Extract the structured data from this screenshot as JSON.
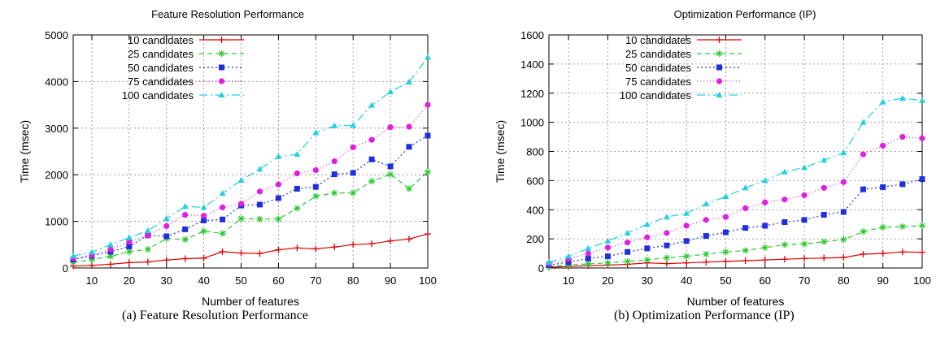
{
  "chart_data": [
    {
      "type": "line",
      "title": "Feature Resolution Performance",
      "xlabel": "Number of features",
      "ylabel": "Time (msec)",
      "xlim": [
        5,
        100
      ],
      "ylim": [
        0,
        5000
      ],
      "xticks": [
        10,
        20,
        30,
        40,
        50,
        60,
        70,
        80,
        90,
        100
      ],
      "yticks": [
        0,
        1000,
        2000,
        3000,
        4000,
        5000
      ],
      "grid": true,
      "legend_position": "top-left",
      "x": [
        5,
        10,
        15,
        20,
        25,
        30,
        35,
        40,
        45,
        50,
        55,
        60,
        65,
        70,
        75,
        80,
        85,
        90,
        95,
        100
      ],
      "series": [
        {
          "name": "10 candidates",
          "color": "#e00000",
          "marker": "plus",
          "dash": "solid",
          "values": [
            40,
            55,
            80,
            115,
            130,
            170,
            200,
            210,
            350,
            320,
            310,
            390,
            430,
            410,
            450,
            500,
            520,
            580,
            620,
            730
          ]
        },
        {
          "name": "25 candidates",
          "color": "#2ec832",
          "marker": "star",
          "dash": "6,4",
          "values": [
            120,
            180,
            250,
            350,
            400,
            630,
            610,
            790,
            740,
            1060,
            1050,
            1050,
            1280,
            1540,
            1610,
            1610,
            1860,
            2010,
            1700,
            2060
          ]
        },
        {
          "name": "50 candidates",
          "color": "#1f2fe0",
          "marker": "square",
          "dash": "2,3",
          "values": [
            180,
            260,
            350,
            460,
            700,
            680,
            830,
            1020,
            1040,
            1340,
            1360,
            1500,
            1700,
            1740,
            2010,
            2040,
            2330,
            2180,
            2600,
            2840
          ]
        },
        {
          "name": "75 candidates",
          "color": "#e020e0",
          "marker": "circle",
          "dash": "1,3",
          "values": [
            210,
            280,
            400,
            560,
            700,
            900,
            1140,
            1120,
            1300,
            1380,
            1640,
            1790,
            2030,
            2100,
            2290,
            2590,
            2750,
            3020,
            3030,
            3500
          ]
        },
        {
          "name": "100 candidates",
          "color": "#20d0e0",
          "marker": "triangle",
          "dash": "10,4,2,4",
          "values": [
            260,
            340,
            500,
            650,
            800,
            1060,
            1320,
            1300,
            1600,
            1880,
            2120,
            2390,
            2440,
            2900,
            3050,
            3060,
            3490,
            3780,
            3990,
            4520
          ]
        }
      ]
    },
    {
      "type": "line",
      "title": "Optimization Performance (IP)",
      "xlabel": "Number of features",
      "ylabel": "Time (msec)",
      "xlim": [
        5,
        100
      ],
      "ylim": [
        0,
        1600
      ],
      "xticks": [
        10,
        20,
        30,
        40,
        50,
        60,
        70,
        80,
        90,
        100
      ],
      "yticks": [
        0,
        200,
        400,
        600,
        800,
        1000,
        1200,
        1400,
        1600
      ],
      "grid": true,
      "legend_position": "top-left",
      "x": [
        5,
        10,
        15,
        20,
        25,
        30,
        35,
        40,
        45,
        50,
        55,
        60,
        65,
        70,
        75,
        80,
        85,
        90,
        95,
        100
      ],
      "series": [
        {
          "name": "10 candidates",
          "color": "#e00000",
          "marker": "plus",
          "dash": "solid",
          "values": [
            5,
            10,
            15,
            20,
            25,
            35,
            30,
            35,
            40,
            45,
            50,
            55,
            60,
            65,
            68,
            72,
            95,
            100,
            110,
            108
          ]
        },
        {
          "name": "25 candidates",
          "color": "#2ec832",
          "marker": "star",
          "dash": "6,4",
          "values": [
            10,
            20,
            28,
            35,
            45,
            55,
            70,
            80,
            95,
            110,
            120,
            140,
            160,
            165,
            180,
            195,
            250,
            280,
            285,
            290
          ]
        },
        {
          "name": "50 candidates",
          "color": "#1f2fe0",
          "marker": "square",
          "dash": "2,3",
          "values": [
            20,
            40,
            65,
            80,
            110,
            135,
            155,
            185,
            220,
            245,
            275,
            290,
            315,
            330,
            365,
            385,
            540,
            555,
            575,
            610
          ]
        },
        {
          "name": "75 candidates",
          "color": "#e020e0",
          "marker": "circle",
          "dash": "1,3",
          "values": [
            30,
            60,
            100,
            140,
            175,
            210,
            240,
            290,
            330,
            350,
            410,
            450,
            470,
            500,
            550,
            590,
            780,
            840,
            900,
            890
          ]
        },
        {
          "name": "100 candidates",
          "color": "#20d0e0",
          "marker": "triangle",
          "dash": "10,4,2,4",
          "values": [
            40,
            80,
            135,
            185,
            240,
            300,
            350,
            375,
            440,
            490,
            550,
            600,
            660,
            690,
            740,
            790,
            1000,
            1140,
            1165,
            1150
          ]
        }
      ]
    }
  ],
  "captions": {
    "a": "(a)  Feature Resolution Performance",
    "b": "(b)  Optimization Performance (IP)"
  }
}
